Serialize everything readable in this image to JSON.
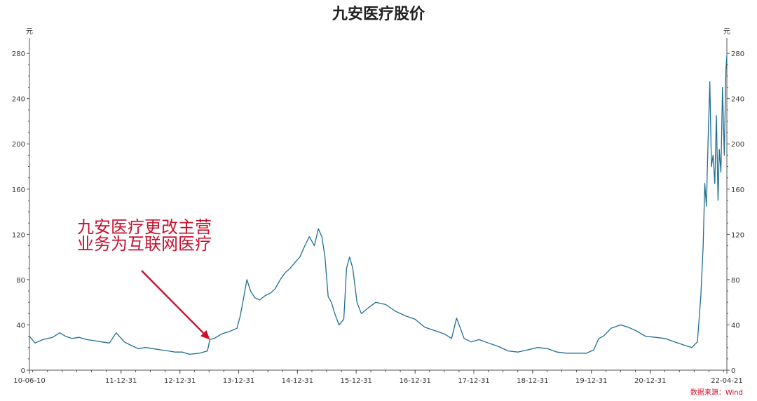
{
  "chart_data": {
    "type": "line",
    "title": "九安医疗股价",
    "ylabel_left": "元",
    "ylabel_right": "元",
    "ylim": [
      0,
      290
    ],
    "yticks": [
      0,
      40,
      80,
      120,
      160,
      200,
      240,
      280
    ],
    "x_tick_labels": [
      "10-06-10",
      "11-12-31",
      "12-12-31",
      "13-12-31",
      "14-12-31",
      "15-12-31",
      "16-12-31",
      "17-12-31",
      "18-12-31",
      "19-12-31",
      "20-12-31",
      "22-04-21"
    ],
    "series_color": "#1f6e94",
    "annotation": {
      "lines": [
        "九安医疗更改主营",
        "业务为互联网医疗"
      ],
      "color": "#c8102e",
      "points_to": [
        "2013-07-05",
        27
      ]
    },
    "source": "数据来源：Wind",
    "series": [
      {
        "x": [
          "2010-06-10",
          "2010-07-15",
          "2010-09-01",
          "2010-11-01",
          "2010-12-15",
          "2011-01-20",
          "2011-03-01",
          "2011-04-15",
          "2011-06-01",
          "2011-07-20",
          "2011-09-01",
          "2011-10-20",
          "2011-12-01",
          "2012-01-20",
          "2012-03-01",
          "2012-04-15",
          "2012-06-01",
          "2012-07-15",
          "2012-09-01",
          "2012-10-20",
          "2012-12-01",
          "2013-01-15",
          "2013-03-01",
          "2013-05-01",
          "2013-06-20",
          "2013-07-05",
          "2013-08-01",
          "2013-09-15",
          "2013-11-01",
          "2013-12-20",
          "2014-01-10",
          "2014-02-01",
          "2014-02-20",
          "2014-03-15",
          "2014-04-10",
          "2014-05-10",
          "2014-06-15",
          "2014-07-15",
          "2014-08-15",
          "2014-09-15",
          "2014-10-15",
          "2014-11-15",
          "2014-12-15",
          "2015-01-15",
          "2015-02-15",
          "2015-03-15",
          "2015-04-15",
          "2015-05-10",
          "2015-06-01",
          "2015-06-20",
          "2015-07-10",
          "2015-07-30",
          "2015-08-20",
          "2015-09-15",
          "2015-10-15",
          "2015-11-01",
          "2015-11-20",
          "2015-12-10",
          "2016-01-05",
          "2016-02-01",
          "2016-03-15",
          "2016-05-01",
          "2016-07-01",
          "2016-09-01",
          "2016-11-01",
          "2016-12-31",
          "2017-03-01",
          "2017-05-01",
          "2017-07-01",
          "2017-08-15",
          "2017-09-15",
          "2017-11-01",
          "2017-12-15",
          "2018-02-01",
          "2018-04-01",
          "2018-06-01",
          "2018-08-01",
          "2018-10-01",
          "2018-12-01",
          "2019-02-01",
          "2019-04-01",
          "2019-06-01",
          "2019-08-01",
          "2019-10-01",
          "2019-12-01",
          "2020-01-15",
          "2020-02-15",
          "2020-03-15",
          "2020-05-01",
          "2020-07-01",
          "2020-08-15",
          "2020-10-01",
          "2020-12-01",
          "2021-02-01",
          "2021-04-01",
          "2021-06-01",
          "2021-08-01",
          "2021-09-15",
          "2021-10-20",
          "2021-11-10",
          "2021-11-25",
          "2021-12-05",
          "2021-12-15",
          "2021-12-25",
          "2022-01-05",
          "2022-01-15",
          "2022-01-25",
          "2022-02-05",
          "2022-02-15",
          "2022-02-25",
          "2022-03-05",
          "2022-03-15",
          "2022-03-25",
          "2022-04-05",
          "2022-04-15",
          "2022-04-21"
        ],
        "values": [
          30,
          24,
          27,
          29,
          33,
          30,
          28,
          29,
          27,
          26,
          25,
          24,
          33,
          25,
          22,
          19,
          20,
          19,
          18,
          17,
          16,
          16,
          14,
          15,
          17,
          27,
          28,
          32,
          34,
          37,
          48,
          65,
          80,
          70,
          64,
          62,
          66,
          68,
          72,
          80,
          86,
          90,
          95,
          100,
          110,
          118,
          110,
          125,
          118,
          100,
          65,
          60,
          50,
          40,
          45,
          90,
          100,
          90,
          60,
          50,
          55,
          60,
          58,
          52,
          48,
          45,
          38,
          35,
          32,
          28,
          46,
          28,
          25,
          27,
          24,
          21,
          17,
          16,
          18,
          20,
          19,
          16,
          15,
          15,
          15,
          18,
          28,
          30,
          37,
          40,
          38,
          35,
          30,
          29,
          28,
          25,
          22,
          20,
          25,
          65,
          110,
          165,
          145,
          200,
          255,
          180,
          190,
          165,
          225,
          150,
          195,
          175,
          250,
          190,
          265,
          278
        ]
      }
    ]
  }
}
